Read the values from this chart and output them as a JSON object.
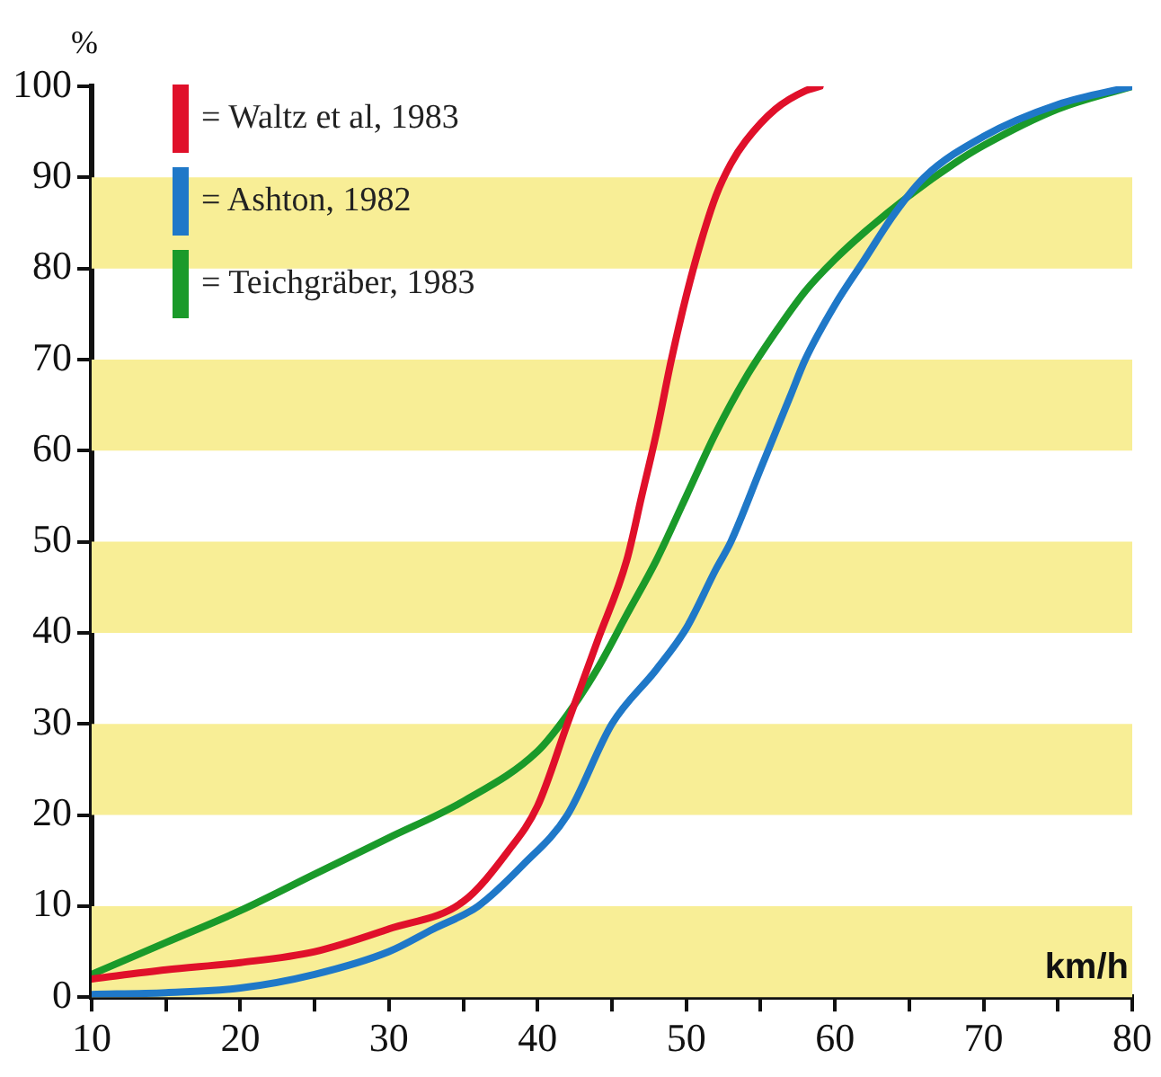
{
  "chart_data": {
    "type": "line",
    "ylabel": "%",
    "xlabel": "km/h",
    "xlim": [
      10,
      80
    ],
    "ylim": [
      0,
      100
    ],
    "xticks": [
      10,
      {
        "value": 15,
        "label": null
      },
      20,
      {
        "value": 25,
        "label": null
      },
      30,
      {
        "value": 35,
        "label": null
      },
      40,
      {
        "value": 45,
        "label": null
      },
      50,
      {
        "value": 55,
        "label": null
      },
      60,
      {
        "value": 65,
        "label": null
      },
      70,
      {
        "value": 75,
        "label": null
      },
      80
    ],
    "yticks": [
      0,
      10,
      20,
      30,
      40,
      50,
      60,
      70,
      80,
      90,
      100
    ],
    "grid": false,
    "legend": "top left",
    "marker": "none",
    "line_style": "solid",
    "bands": [
      {
        "axis": "y",
        "from": 0,
        "to": 10,
        "color": "#f8ee96"
      },
      {
        "axis": "y",
        "from": 20,
        "to": 30,
        "color": "#f8ee96"
      },
      {
        "axis": "y",
        "from": 40,
        "to": 50,
        "color": "#f8ee96"
      },
      {
        "axis": "y",
        "from": 60,
        "to": 70,
        "color": "#f8ee96"
      },
      {
        "axis": "y",
        "from": 80,
        "to": 90,
        "color": "#f8ee96"
      }
    ],
    "series": [
      {
        "name": "= Waltz et al, 1983",
        "color": "#e0102a",
        "x": [
          10,
          15,
          20,
          25,
          30,
          35,
          38,
          40,
          42,
          44,
          46,
          47,
          48,
          49,
          50,
          51,
          52,
          53,
          54,
          56,
          58,
          59
        ],
        "values": [
          2,
          3,
          3.8,
          5,
          7.5,
          10.5,
          16,
          21,
          30,
          39,
          48,
          55,
          62,
          70,
          77,
          83,
          88,
          91.5,
          94,
          97.5,
          99.5,
          100
        ]
      },
      {
        "name": "= Ashton, 1982",
        "color": "#1f78c8",
        "x": [
          10,
          15,
          20,
          25,
          30,
          33,
          36,
          39,
          42,
          45,
          48,
          50,
          52,
          53,
          55,
          57,
          58,
          60,
          62,
          64,
          66,
          70,
          75,
          80
        ],
        "values": [
          0.3,
          0.5,
          1,
          2.5,
          5,
          7.5,
          10,
          14.5,
          20,
          30,
          36,
          40.5,
          47,
          50,
          58,
          66,
          70,
          76,
          81,
          86,
          90,
          94.5,
          98,
          100
        ]
      },
      {
        "name": "= Teichgräber, 1983",
        "color": "#1a9a2a",
        "x": [
          10,
          15,
          20,
          25,
          30,
          35,
          40,
          42,
          44,
          46,
          48,
          50,
          52,
          54,
          56,
          58,
          60,
          62,
          65,
          68,
          70,
          75,
          80
        ],
        "values": [
          2.5,
          6,
          9.5,
          13.5,
          17.5,
          21.5,
          27,
          31,
          36,
          42,
          48,
          55,
          62,
          68,
          73,
          77.5,
          81,
          84,
          88,
          91.5,
          93.5,
          97.5,
          100
        ]
      }
    ]
  }
}
